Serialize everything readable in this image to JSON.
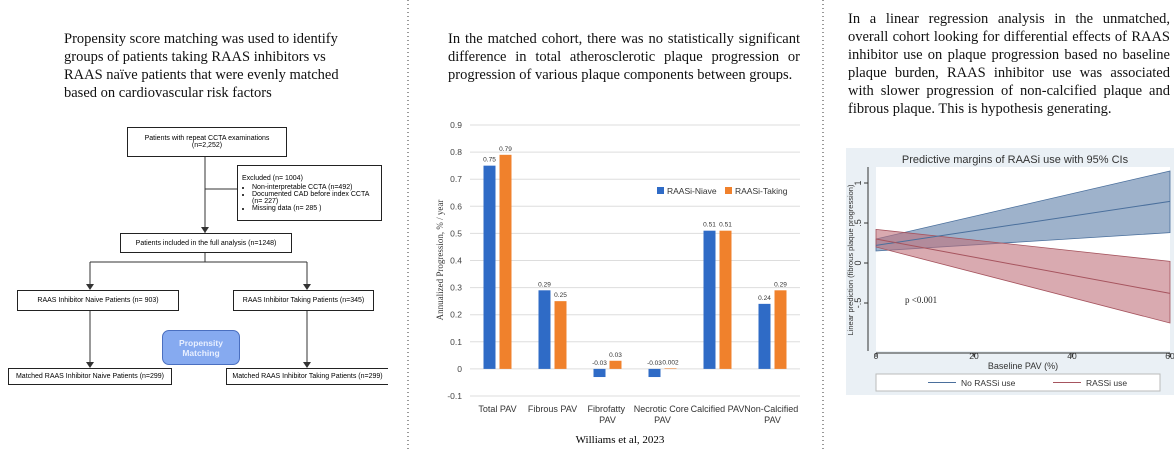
{
  "left": {
    "caption": "Propensity score matching was used to identify groups of patients taking RAAS inhibitors vs RAAS naïve patients that were evenly matched based on cardiovascular risk factors",
    "flowchart": {
      "nodes": [
        {
          "label": "Patients with repeat CCTA examinations",
          "sub": "(n=2,252)"
        },
        {
          "label": "Excluded (n= 1004)",
          "items": [
            "Non-interpretable CCTA (n=492)",
            "Documented CAD before  index CCTA (n= 227)",
            "Missing data (n= 285 )"
          ]
        },
        {
          "label": "Patients included in the full analysis (n=1248)"
        },
        {
          "label": "RAAS Inhibitor Naive Patients (n= 903)"
        },
        {
          "label": "RAAS Inhibitor Taking Patients (n=345)"
        },
        {
          "label": "Propensity Matching"
        },
        {
          "label": "Matched RAAS Inhibitor Naive Patients (n=299)"
        },
        {
          "label": "Matched RAAS Inhibitor Taking Patients (n=299)"
        }
      ]
    }
  },
  "middle": {
    "caption": "In the matched cohort, there was no statistically significant difference in total atherosclerotic plaque progression or progression of various plaque components between groups."
  },
  "right": {
    "caption": "In a linear regression analysis in the unmatched, overall cohort looking for differential effects of RAAS inhibitor use on plaque progression based no baseline plaque burden, RAAS inhibitor use was associated with slower progression of non-calcified plaque and fibrous plaque. This is hypothesis generating."
  },
  "footer": "Williams et al, 2023",
  "chart_data": [
    {
      "type": "bar",
      "y_label": "Annualized Progression, % / year",
      "categories": [
        "Total PAV",
        "Fibrous PAV",
        "Fibrofatty PAV",
        "Necrotic Core PAV",
        "Calcified PAV",
        "Non-Calcified PAV"
      ],
      "series": [
        {
          "name": "RAASi-Niave",
          "color": "#2f6bc6",
          "values": [
            0.75,
            0.29,
            -0.03,
            -0.03,
            0.51,
            0.24
          ]
        },
        {
          "name": "RAASi-Taking",
          "color": "#f0812c",
          "values": [
            0.79,
            0.25,
            0.03,
            0.002,
            0.51,
            0.29
          ]
        }
      ],
      "ylim": [
        -0.1,
        0.9
      ],
      "yticks": [
        -0.1,
        0,
        0.1,
        0.2,
        0.3,
        0.4,
        0.5,
        0.6,
        0.7,
        0.8,
        0.9
      ],
      "grid": true,
      "legend": "upper right"
    },
    {
      "type": "line",
      "title": "Predictive margins of RAASi use with 95% CIs",
      "x_label": "Baseline PAV (%)",
      "y_label": "Linear prediction (fibrous plaque progression)",
      "annotation": "p <0.001",
      "x": [
        0,
        60
      ],
      "series": [
        {
          "name": "No RASSi use",
          "color": "#4a6f9c",
          "band_color": "#5d7fa8",
          "values": [
            0.22,
            0.77
          ],
          "lower": [
            0.15,
            0.38
          ],
          "upper": [
            0.3,
            1.15
          ]
        },
        {
          "name": "RASSi use",
          "color": "#a6545e",
          "band_color": "#c0717b",
          "values": [
            0.3,
            -0.38
          ],
          "lower": [
            0.2,
            -0.75
          ],
          "upper": [
            0.42,
            0.02
          ]
        }
      ],
      "xlim": [
        0,
        60
      ],
      "xticks": [
        0,
        20,
        40,
        60
      ],
      "ylim": [
        -1.1,
        1.2
      ],
      "yticks": [
        {
          "value": 1,
          "label": "1"
        },
        {
          "value": 0.5,
          "label": ".5"
        },
        {
          "value": 0,
          "label": "0"
        },
        {
          "value": -0.5,
          "label": "-.5"
        }
      ],
      "legend": "bottom"
    }
  ]
}
